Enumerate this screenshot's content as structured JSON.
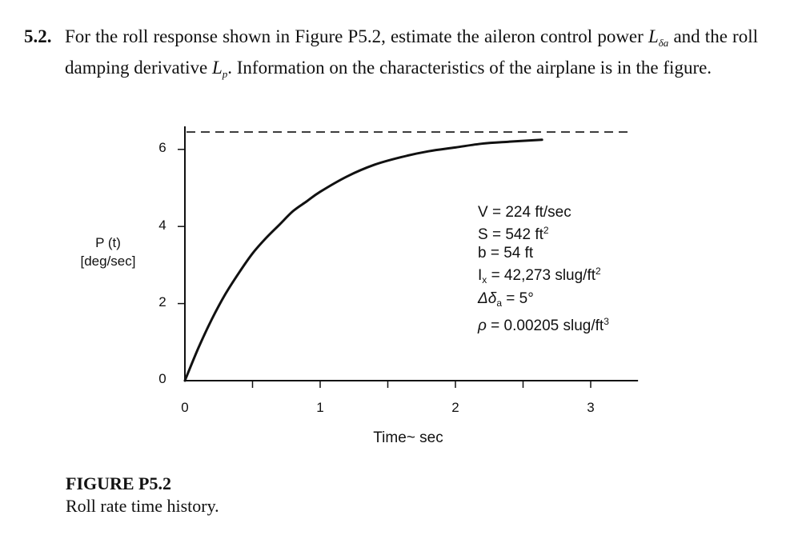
{
  "problem": {
    "number": "5.2.",
    "line1": "For the roll response shown in Figure P5.2, estimate the aileron control power ",
    "symbol_control_power": "L",
    "symbol_control_power_sub": "δa",
    "line2a": " and the roll damping derivative ",
    "symbol_damping": "L",
    "symbol_damping_sub": "p",
    "line2b": ". Information on the characteristics of the airplane is in the figure."
  },
  "figure": {
    "title": "FIGURE P5.2",
    "caption": "Roll rate time history."
  },
  "parameters": [
    {
      "symbol": "V",
      "sub": "",
      "value": "= 224 ft/sec",
      "sup": ""
    },
    {
      "symbol": "S",
      "sub": "",
      "value": "= 542 ft",
      "sup": "2"
    },
    {
      "symbol": "b",
      "sub": "",
      "value": "= 54 ft",
      "sup": ""
    },
    {
      "symbol": "I",
      "sub": "x",
      "value": "= 42,273 slug/ft",
      "sup": "2"
    },
    {
      "symbol": "Δδ",
      "sub": "a",
      "value": "= 5°",
      "sup": ""
    },
    {
      "symbol": "ρ",
      "sub": "",
      "value": "= 0.00205 slug/ft",
      "sup": "3"
    }
  ],
  "chart_data": {
    "type": "line",
    "title": "Roll rate time history",
    "xlabel": "Time~ sec",
    "ylabel_line1": "P (t)",
    "ylabel_line2": "[deg/sec]",
    "xlim": [
      0,
      3.35
    ],
    "ylim": [
      0,
      6.6
    ],
    "x_ticks": [
      0,
      1,
      2,
      3
    ],
    "x_minor_ticks": [
      0.5,
      1.5,
      2.5
    ],
    "y_ticks": [
      0,
      2,
      4,
      6
    ],
    "grid": false,
    "legend": null,
    "series": [
      {
        "name": "P(t) roll rate response",
        "style": "solid",
        "x": [
          0,
          0.1,
          0.2,
          0.3,
          0.4,
          0.5,
          0.6,
          0.7,
          0.8,
          0.9,
          1.0,
          1.2,
          1.4,
          1.6,
          1.8,
          2.0,
          2.2,
          2.4,
          2.64
        ],
        "y": [
          0,
          0.85,
          1.6,
          2.25,
          2.8,
          3.3,
          3.7,
          4.05,
          4.4,
          4.65,
          4.9,
          5.3,
          5.6,
          5.8,
          5.95,
          6.05,
          6.15,
          6.2,
          6.25
        ]
      },
      {
        "name": "steady-state asymptote",
        "style": "dashed",
        "x": [
          0,
          3.35
        ],
        "y": [
          6.45,
          6.45
        ]
      }
    ],
    "annotations": [
      "V = 224 ft/sec",
      "S = 542 ft^2",
      "b = 54 ft",
      "I_x = 42,273 slug/ft^2",
      "Δδ_a = 5°",
      "ρ = 0.00205 slug/ft^3"
    ]
  }
}
